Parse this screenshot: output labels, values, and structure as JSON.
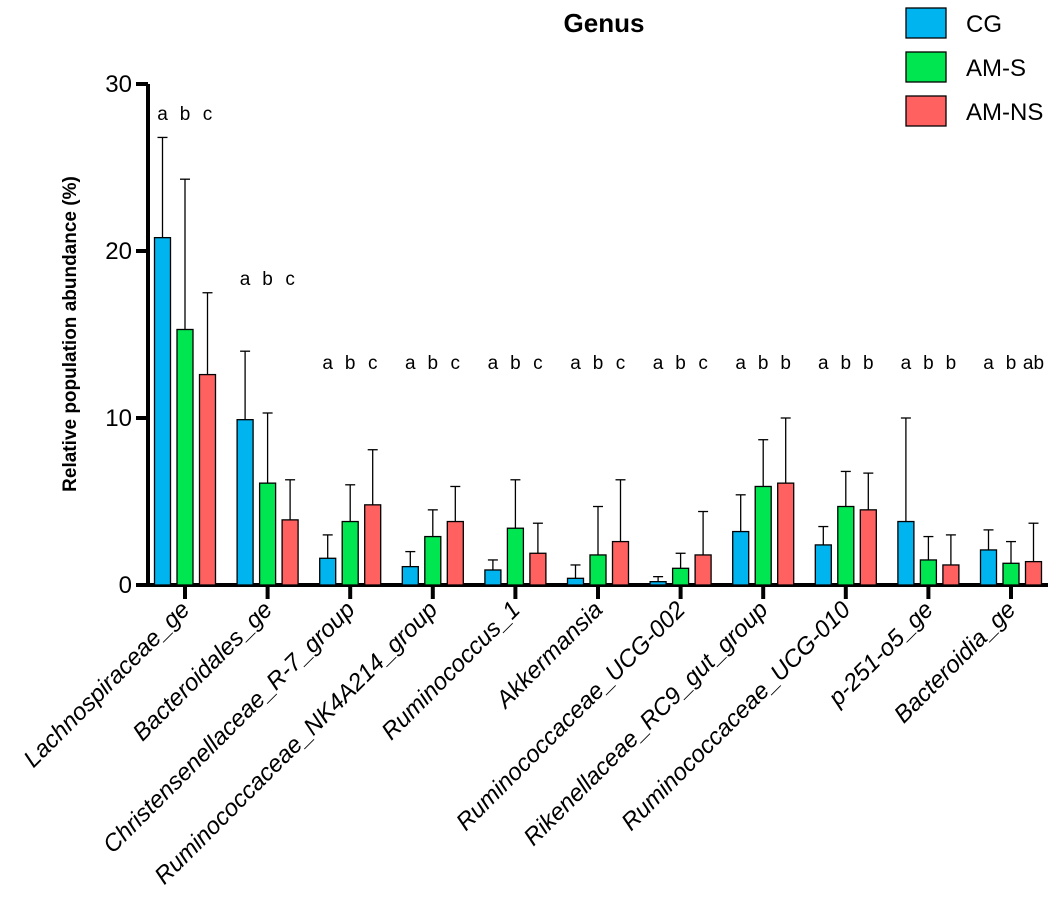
{
  "chart_data": {
    "type": "bar",
    "title": "Genus",
    "xlabel": "",
    "ylabel": "Relative population abundance (%)",
    "ylim": [
      0,
      30
    ],
    "yticks": [
      "0",
      "10",
      "20",
      "30"
    ],
    "grid": false,
    "legend_position": "top-right",
    "categories": [
      "Lachnospiraceae_ge",
      "Bacteroidales_ge",
      "Christensenellaceae_R-7_group",
      "Ruminococcaceae_NK4A214_group",
      "Ruminococcus_1",
      "Akkermansia",
      "Ruminococcaceae_UCG-002",
      "Rikenellaceae_RC9_gut_group",
      "Ruminococcaceae_UCG-010",
      "p-251-o5_ge",
      "Bacteroidia_ge"
    ],
    "series": [
      {
        "name": "CG",
        "color": "#00B4F0",
        "values": [
          20.8,
          9.9,
          1.6,
          1.1,
          0.9,
          0.4,
          0.2,
          3.2,
          2.4,
          3.8,
          2.1
        ],
        "errors": [
          6.0,
          4.1,
          1.4,
          0.9,
          0.6,
          0.8,
          0.3,
          2.2,
          1.1,
          6.2,
          1.2
        ]
      },
      {
        "name": "AM-S",
        "color": "#00E651",
        "values": [
          15.3,
          6.1,
          3.8,
          2.9,
          3.4,
          1.8,
          1.0,
          5.9,
          4.7,
          1.5,
          1.3
        ],
        "errors": [
          9.0,
          4.2,
          2.2,
          1.6,
          2.9,
          2.9,
          0.9,
          2.8,
          2.1,
          1.4,
          1.3
        ]
      },
      {
        "name": "AM-NS",
        "color": "#FF6161",
        "values": [
          12.6,
          3.9,
          4.8,
          3.8,
          1.9,
          2.6,
          1.8,
          6.1,
          4.5,
          1.2,
          1.4
        ],
        "errors": [
          4.9,
          2.4,
          3.3,
          2.1,
          1.8,
          3.7,
          2.6,
          3.9,
          2.2,
          1.8,
          2.3
        ]
      }
    ],
    "significance_letters": [
      [
        "a",
        "b",
        "c"
      ],
      [
        "a",
        "b",
        "c"
      ],
      [
        "a",
        "b",
        "c"
      ],
      [
        "a",
        "b",
        "c"
      ],
      [
        "a",
        "b",
        "c"
      ],
      [
        "a",
        "b",
        "c"
      ],
      [
        "a",
        "b",
        "c"
      ],
      [
        "a",
        "b",
        "b"
      ],
      [
        "a",
        "b",
        "b"
      ],
      [
        "a",
        "b",
        "b"
      ],
      [
        "a",
        "b",
        "ab"
      ]
    ]
  }
}
